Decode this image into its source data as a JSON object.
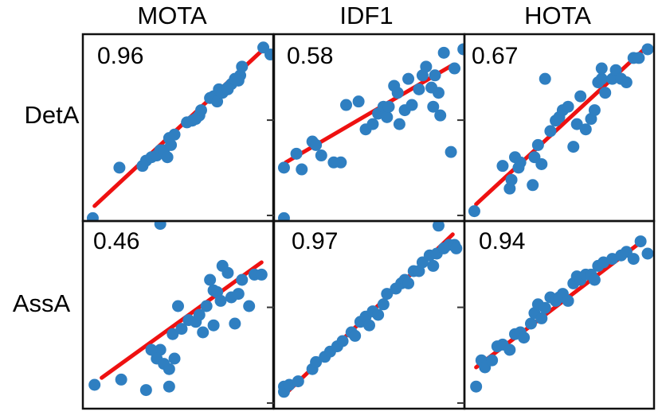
{
  "chart_data": {
    "type": "scatter",
    "title": "",
    "columns": [
      "MOTA",
      "IDF1",
      "HOTA"
    ],
    "rows": [
      "DetA",
      "AssA"
    ],
    "axis_range": [
      0,
      1
    ],
    "colors": {
      "points": "#2f7fc1",
      "fit": "#ee1111",
      "frame": "#111111"
    },
    "panels": [
      {
        "row": "DetA",
        "col": "MOTA",
        "correlation": "0.96",
        "fit": [
          [
            0.03,
            0.05
          ],
          [
            0.97,
            0.94
          ]
        ],
        "points": [
          [
            0.02,
            -0.02
          ],
          [
            0.17,
            0.27
          ],
          [
            0.3,
            0.28
          ],
          [
            0.32,
            0.31
          ],
          [
            0.35,
            0.33
          ],
          [
            0.38,
            0.34
          ],
          [
            0.4,
            0.37
          ],
          [
            0.42,
            0.37
          ],
          [
            0.45,
            0.44
          ],
          [
            0.48,
            0.46
          ],
          [
            0.46,
            0.4
          ],
          [
            0.44,
            0.33
          ],
          [
            0.55,
            0.53
          ],
          [
            0.58,
            0.54
          ],
          [
            0.6,
            0.55
          ],
          [
            0.62,
            0.57
          ],
          [
            0.63,
            0.6
          ],
          [
            0.68,
            0.67
          ],
          [
            0.7,
            0.68
          ],
          [
            0.72,
            0.65
          ],
          [
            0.73,
            0.72
          ],
          [
            0.75,
            0.7
          ],
          [
            0.78,
            0.73
          ],
          [
            0.8,
            0.75
          ],
          [
            0.82,
            0.78
          ],
          [
            0.85,
            0.8
          ],
          [
            0.86,
            0.85
          ],
          [
            0.78,
            0.72
          ],
          [
            0.84,
            0.77
          ],
          [
            0.98,
            0.96
          ],
          [
            1.02,
            0.92
          ]
        ]
      },
      {
        "row": "DetA",
        "col": "IDF1",
        "correlation": "0.58",
        "fit": [
          [
            0.03,
            0.3
          ],
          [
            0.97,
            0.86
          ]
        ],
        "points": [
          [
            0.02,
            0.27
          ],
          [
            0.02,
            -0.02
          ],
          [
            0.09,
            0.35
          ],
          [
            0.12,
            0.26
          ],
          [
            0.18,
            0.42
          ],
          [
            0.2,
            0.4
          ],
          [
            0.23,
            0.34
          ],
          [
            0.3,
            0.3
          ],
          [
            0.34,
            0.3
          ],
          [
            0.37,
            0.63
          ],
          [
            0.44,
            0.65
          ],
          [
            0.48,
            0.49
          ],
          [
            0.52,
            0.52
          ],
          [
            0.55,
            0.58
          ],
          [
            0.58,
            0.62
          ],
          [
            0.6,
            0.56
          ],
          [
            0.61,
            0.62
          ],
          [
            0.64,
            0.74
          ],
          [
            0.66,
            0.7
          ],
          [
            0.67,
            0.52
          ],
          [
            0.7,
            0.6
          ],
          [
            0.72,
            0.78
          ],
          [
            0.74,
            0.63
          ],
          [
            0.78,
            0.72
          ],
          [
            0.8,
            0.8
          ],
          [
            0.82,
            0.85
          ],
          [
            0.85,
            0.73
          ],
          [
            0.87,
            0.8
          ],
          [
            0.89,
            0.7
          ],
          [
            0.9,
            0.57
          ],
          [
            0.92,
            0.93
          ],
          [
            0.96,
            0.36
          ],
          [
            0.98,
            0.84
          ],
          [
            1.03,
            0.95
          ],
          [
            0.86,
            0.62
          ]
        ]
      },
      {
        "row": "DetA",
        "col": "HOTA",
        "correlation": "0.67",
        "fit": [
          [
            0.03,
            0.06
          ],
          [
            0.98,
            0.95
          ]
        ],
        "points": [
          [
            0.02,
            0.02
          ],
          [
            0.18,
            0.28
          ],
          [
            0.22,
            0.15
          ],
          [
            0.23,
            0.2
          ],
          [
            0.25,
            0.33
          ],
          [
            0.27,
            0.27
          ],
          [
            0.28,
            0.3
          ],
          [
            0.35,
            0.17
          ],
          [
            0.36,
            0.33
          ],
          [
            0.38,
            0.4
          ],
          [
            0.4,
            0.29
          ],
          [
            0.45,
            0.48
          ],
          [
            0.48,
            0.54
          ],
          [
            0.5,
            0.56
          ],
          [
            0.52,
            0.6
          ],
          [
            0.55,
            0.62
          ],
          [
            0.58,
            0.39
          ],
          [
            0.6,
            0.52
          ],
          [
            0.62,
            0.68
          ],
          [
            0.65,
            0.49
          ],
          [
            0.68,
            0.55
          ],
          [
            0.7,
            0.6
          ],
          [
            0.72,
            0.76
          ],
          [
            0.74,
            0.78
          ],
          [
            0.76,
            0.7
          ],
          [
            0.8,
            0.78
          ],
          [
            0.82,
            0.83
          ],
          [
            0.85,
            0.78
          ],
          [
            0.88,
            0.76
          ],
          [
            0.92,
            0.9
          ],
          [
            0.95,
            0.9
          ],
          [
            1.0,
            0.95
          ],
          [
            0.42,
            0.78
          ],
          [
            0.74,
            0.84
          ]
        ]
      },
      {
        "row": "AssA",
        "col": "MOTA",
        "correlation": "0.46",
        "fit": [
          [
            0.07,
            0.14
          ],
          [
            0.97,
            0.8
          ]
        ],
        "points": [
          [
            0.03,
            0.1
          ],
          [
            0.18,
            0.13
          ],
          [
            0.32,
            0.07
          ],
          [
            0.4,
            0.3
          ],
          [
            0.35,
            0.3
          ],
          [
            0.38,
            0.25
          ],
          [
            0.42,
            0.22
          ],
          [
            0.45,
            0.19
          ],
          [
            0.48,
            0.25
          ],
          [
            0.45,
            0.09
          ],
          [
            0.47,
            0.39
          ],
          [
            0.5,
            0.55
          ],
          [
            0.52,
            0.42
          ],
          [
            0.56,
            0.47
          ],
          [
            0.6,
            0.46
          ],
          [
            0.62,
            0.5
          ],
          [
            0.64,
            0.4
          ],
          [
            0.66,
            0.55
          ],
          [
            0.68,
            0.7
          ],
          [
            0.7,
            0.64
          ],
          [
            0.72,
            0.63
          ],
          [
            0.74,
            0.58
          ],
          [
            0.75,
            0.78
          ],
          [
            0.78,
            0.74
          ],
          [
            0.8,
            0.6
          ],
          [
            0.82,
            0.45
          ],
          [
            0.84,
            0.62
          ],
          [
            0.86,
            0.7
          ],
          [
            0.9,
            0.55
          ],
          [
            0.93,
            0.73
          ],
          [
            0.97,
            0.73
          ],
          [
            0.4,
            1.02
          ],
          [
            0.7,
            0.44
          ]
        ]
      },
      {
        "row": "AssA",
        "col": "IDF1",
        "correlation": "0.97",
        "fit": [
          [
            0.03,
            0.05
          ],
          [
            0.97,
            0.96
          ]
        ],
        "points": [
          [
            0.02,
            0.09
          ],
          [
            0.02,
            0.06
          ],
          [
            0.05,
            0.1
          ],
          [
            0.1,
            0.12
          ],
          [
            0.18,
            0.19
          ],
          [
            0.2,
            0.23
          ],
          [
            0.25,
            0.26
          ],
          [
            0.28,
            0.29
          ],
          [
            0.32,
            0.32
          ],
          [
            0.35,
            0.35
          ],
          [
            0.4,
            0.4
          ],
          [
            0.42,
            0.38
          ],
          [
            0.45,
            0.46
          ],
          [
            0.48,
            0.49
          ],
          [
            0.5,
            0.44
          ],
          [
            0.52,
            0.52
          ],
          [
            0.55,
            0.5
          ],
          [
            0.58,
            0.56
          ],
          [
            0.6,
            0.62
          ],
          [
            0.65,
            0.65
          ],
          [
            0.68,
            0.68
          ],
          [
            0.7,
            0.7
          ],
          [
            0.72,
            0.68
          ],
          [
            0.75,
            0.75
          ],
          [
            0.78,
            0.75
          ],
          [
            0.8,
            0.8
          ],
          [
            0.84,
            0.84
          ],
          [
            0.86,
            0.78
          ],
          [
            0.88,
            0.85
          ],
          [
            0.92,
            0.88
          ],
          [
            0.95,
            0.9
          ],
          [
            0.98,
            0.9
          ],
          [
            0.99,
            0.88
          ],
          [
            0.89,
            1.01
          ]
        ]
      },
      {
        "row": "AssA",
        "col": "HOTA",
        "correlation": "0.94",
        "fit": [
          [
            0.03,
            0.2
          ],
          [
            0.98,
            0.93
          ]
        ],
        "points": [
          [
            0.03,
            0.09
          ],
          [
            0.06,
            0.24
          ],
          [
            0.08,
            0.2
          ],
          [
            0.12,
            0.24
          ],
          [
            0.15,
            0.32
          ],
          [
            0.18,
            0.33
          ],
          [
            0.22,
            0.3
          ],
          [
            0.25,
            0.39
          ],
          [
            0.28,
            0.4
          ],
          [
            0.3,
            0.37
          ],
          [
            0.34,
            0.45
          ],
          [
            0.36,
            0.51
          ],
          [
            0.38,
            0.56
          ],
          [
            0.4,
            0.48
          ],
          [
            0.42,
            0.54
          ],
          [
            0.45,
            0.6
          ],
          [
            0.48,
            0.58
          ],
          [
            0.5,
            0.6
          ],
          [
            0.52,
            0.62
          ],
          [
            0.55,
            0.58
          ],
          [
            0.58,
            0.68
          ],
          [
            0.6,
            0.72
          ],
          [
            0.62,
            0.7
          ],
          [
            0.65,
            0.73
          ],
          [
            0.68,
            0.73
          ],
          [
            0.7,
            0.7
          ],
          [
            0.72,
            0.78
          ],
          [
            0.75,
            0.8
          ],
          [
            0.8,
            0.82
          ],
          [
            0.85,
            0.84
          ],
          [
            0.88,
            0.86
          ],
          [
            0.92,
            0.82
          ],
          [
            0.96,
            0.92
          ],
          [
            1.0,
            0.85
          ]
        ]
      }
    ]
  }
}
